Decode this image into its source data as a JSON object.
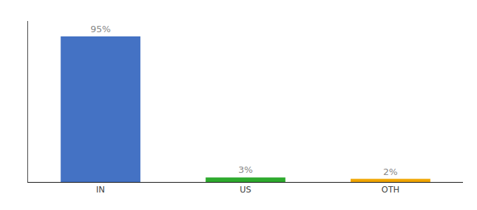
{
  "chart_data": {
    "type": "bar",
    "categories": [
      "IN",
      "US",
      "OTH"
    ],
    "values": [
      95,
      3,
      2
    ],
    "value_labels": [
      "95%",
      "3%",
      "2%"
    ],
    "colors": [
      "#4472c4",
      "#2eaa2e",
      "#f0a500"
    ],
    "ylim": [
      0,
      105
    ],
    "data_labels": true,
    "tick_labels": "x",
    "grid": false
  }
}
